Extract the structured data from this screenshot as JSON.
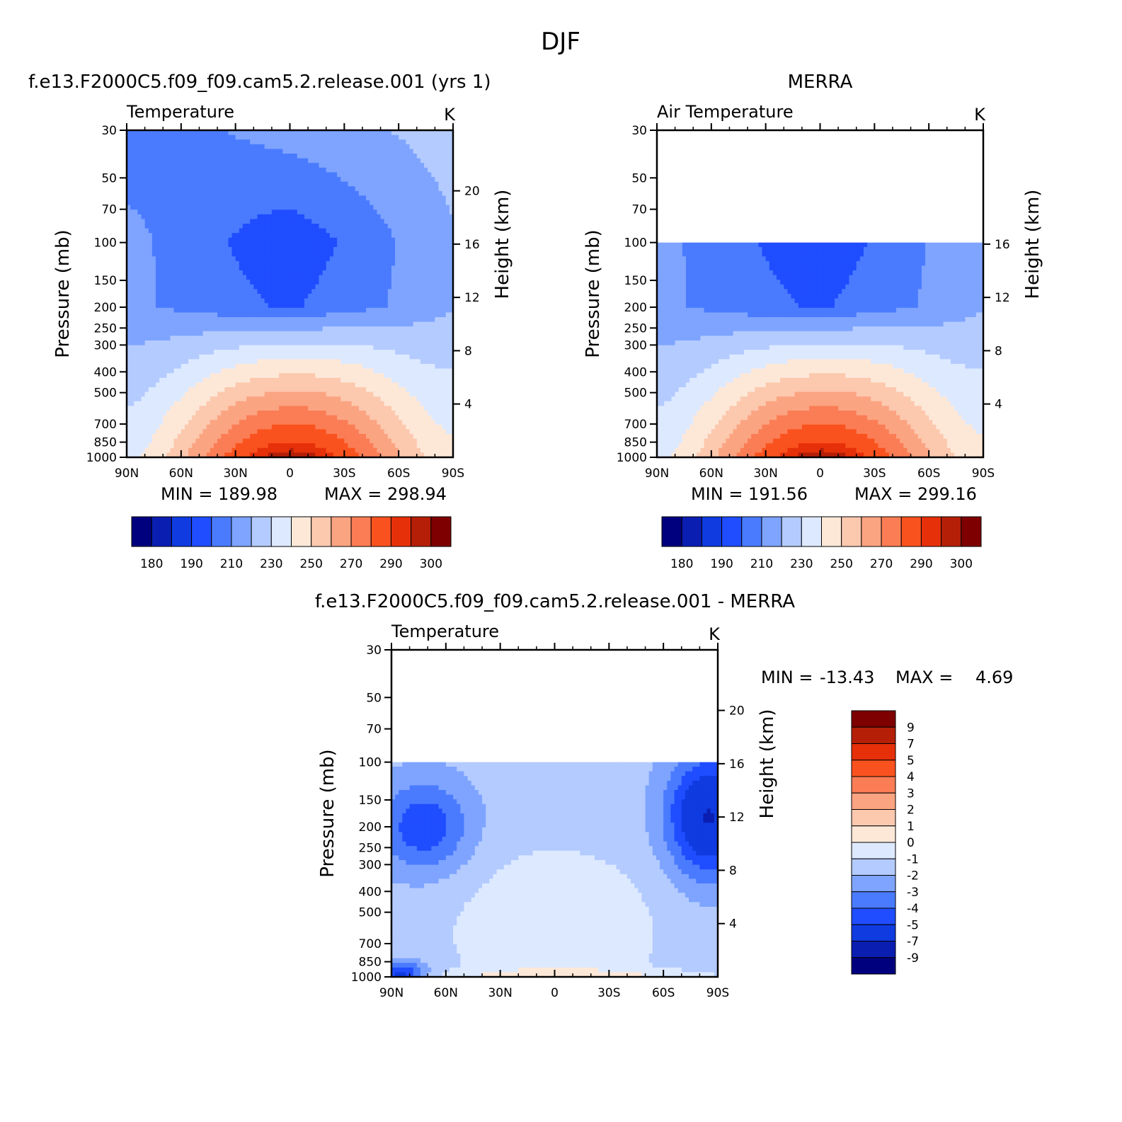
{
  "page_title": "DJF",
  "colors": {
    "temp_palette": [
      "#00007f",
      "#0a1eb2",
      "#0f3be0",
      "#1f4dff",
      "#4a7bff",
      "#7ea4ff",
      "#b4cbff",
      "#dde9ff",
      "#fde8d8",
      "#fcc8ae",
      "#fba482",
      "#fa7d55",
      "#fa521e",
      "#e6300a",
      "#b51f08",
      "#7f0000"
    ],
    "diff_palette": [
      "#00007f",
      "#0a1eb2",
      "#0f3be0",
      "#1f4dff",
      "#4a7bff",
      "#7ea4ff",
      "#b4cbff",
      "#dde9ff",
      "#fde8d8",
      "#fcc8ae",
      "#fba482",
      "#fa7d55",
      "#fa521e",
      "#e6300a",
      "#b51f08",
      "#7f0000"
    ]
  },
  "chart_data": [
    {
      "type": "contour",
      "case_title": "f.e13.F2000C5.f09_f09.cam5.2.release.001 (yrs 1)",
      "left_label": "Temperature",
      "units": "K",
      "ylabel": "Pressure (mb)",
      "y2label": "Height (km)",
      "x_ticks": [
        "90N",
        "60N",
        "30N",
        "0",
        "30S",
        "60S",
        "90S"
      ],
      "y_ticks": [
        "30",
        "50",
        "70",
        "100",
        "150",
        "200",
        "250",
        "300",
        "400",
        "500",
        "700",
        "850",
        "1000"
      ],
      "y2_ticks": [
        "20",
        "16",
        "12",
        "8",
        "4"
      ],
      "min_text": "MIN = 189.98",
      "max_text": "MAX = 298.94",
      "min": 189.98,
      "max": 298.94,
      "colorbar_labels": [
        "180",
        "190",
        "210",
        "230",
        "250",
        "270",
        "290",
        "300"
      ],
      "colorbar_levels": [
        180,
        185,
        190,
        200,
        210,
        220,
        230,
        240,
        250,
        260,
        270,
        280,
        290,
        295,
        300
      ]
    },
    {
      "type": "contour",
      "case_title": "MERRA",
      "left_label": "Air Temperature",
      "units": "K",
      "ylabel": "Pressure (mb)",
      "y2label": "Height (km)",
      "x_ticks": [
        "90N",
        "60N",
        "30N",
        "0",
        "30S",
        "60S",
        "90S"
      ],
      "y_ticks": [
        "30",
        "50",
        "70",
        "100",
        "150",
        "200",
        "250",
        "300",
        "400",
        "500",
        "700",
        "850",
        "1000"
      ],
      "y2_ticks": [
        "16",
        "12",
        "8",
        "4"
      ],
      "min_text": "MIN = 191.56",
      "max_text": "MAX = 299.16",
      "min": 191.56,
      "max": 299.16,
      "data_top_pressure": 100,
      "colorbar_labels": [
        "180",
        "190",
        "210",
        "230",
        "250",
        "270",
        "290",
        "300"
      ],
      "colorbar_levels": [
        180,
        185,
        190,
        200,
        210,
        220,
        230,
        240,
        250,
        260,
        270,
        280,
        290,
        295,
        300
      ]
    },
    {
      "type": "contour",
      "case_title": "f.e13.F2000C5.f09_f09.cam5.2.release.001 - MERRA",
      "left_label": "Temperature",
      "units": "K",
      "ylabel": "Pressure (mb)",
      "y2label": "Height (km)",
      "x_ticks": [
        "90N",
        "60N",
        "30N",
        "0",
        "30S",
        "60S",
        "90S"
      ],
      "y_ticks": [
        "30",
        "50",
        "70",
        "100",
        "150",
        "200",
        "250",
        "300",
        "400",
        "500",
        "700",
        "850",
        "1000"
      ],
      "y2_ticks": [
        "20",
        "16",
        "12",
        "8",
        "4"
      ],
      "min_label": "MIN =",
      "min_value": "-13.43",
      "max_label": "MAX =",
      "max_value": "4.69",
      "min": -13.43,
      "max": 4.69,
      "data_top_pressure": 100,
      "colorbar_labels": [
        "9",
        "7",
        "5",
        "4",
        "3",
        "2",
        "1",
        "0",
        "-1",
        "-2",
        "-3",
        "-4",
        "-5",
        "-7",
        "-9"
      ],
      "colorbar_levels": [
        9,
        7,
        5,
        4,
        3,
        2,
        1,
        0,
        -1,
        -2,
        -3,
        -4,
        -5,
        -7,
        -9
      ]
    }
  ]
}
